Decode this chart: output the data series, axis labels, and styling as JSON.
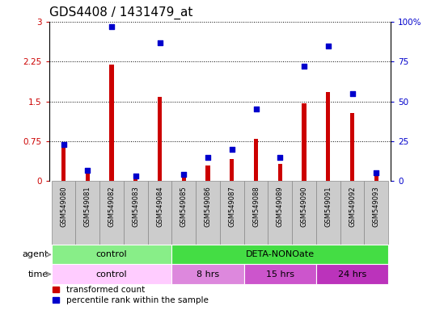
{
  "title": "GDS4408 / 1431479_at",
  "samples": [
    "GSM549080",
    "GSM549081",
    "GSM549082",
    "GSM549083",
    "GSM549084",
    "GSM549085",
    "GSM549086",
    "GSM549087",
    "GSM549088",
    "GSM549089",
    "GSM549090",
    "GSM549091",
    "GSM549092",
    "GSM549093"
  ],
  "red_values": [
    0.72,
    0.22,
    2.2,
    0.08,
    1.58,
    0.12,
    0.3,
    0.42,
    0.8,
    0.32,
    1.47,
    1.68,
    1.28,
    0.12
  ],
  "blue_values": [
    23,
    7,
    97,
    3,
    87,
    4,
    15,
    20,
    45,
    15,
    72,
    85,
    55,
    5
  ],
  "ylim_left": [
    0,
    3
  ],
  "ylim_right": [
    0,
    100
  ],
  "yticks_left": [
    0,
    0.75,
    1.5,
    2.25,
    3
  ],
  "yticks_right": [
    0,
    25,
    50,
    75,
    100
  ],
  "ytick_labels_left": [
    "0",
    "0.75",
    "1.5",
    "2.25",
    "3"
  ],
  "ytick_labels_right": [
    "0",
    "25",
    "50",
    "75",
    "100%"
  ],
  "red_color": "#cc0000",
  "blue_color": "#0000cc",
  "bar_width": 0.18,
  "agent_groups": [
    {
      "label": "control",
      "start": 0,
      "end": 4,
      "color": "#88ee88"
    },
    {
      "label": "DETA-NONOate",
      "start": 5,
      "end": 13,
      "color": "#44dd44"
    }
  ],
  "time_groups": [
    {
      "label": "control",
      "start": 0,
      "end": 4,
      "color": "#ffccff"
    },
    {
      "label": "8 hrs",
      "start": 5,
      "end": 7,
      "color": "#dd88dd"
    },
    {
      "label": "15 hrs",
      "start": 8,
      "end": 10,
      "color": "#cc55cc"
    },
    {
      "label": "24 hrs",
      "start": 11,
      "end": 13,
      "color": "#bb33bb"
    }
  ],
  "xlabel_bg_color": "#cccccc",
  "xlabel_border_color": "#888888",
  "title_fontsize": 11,
  "label_fontsize": 8,
  "tick_fontsize": 7.5
}
